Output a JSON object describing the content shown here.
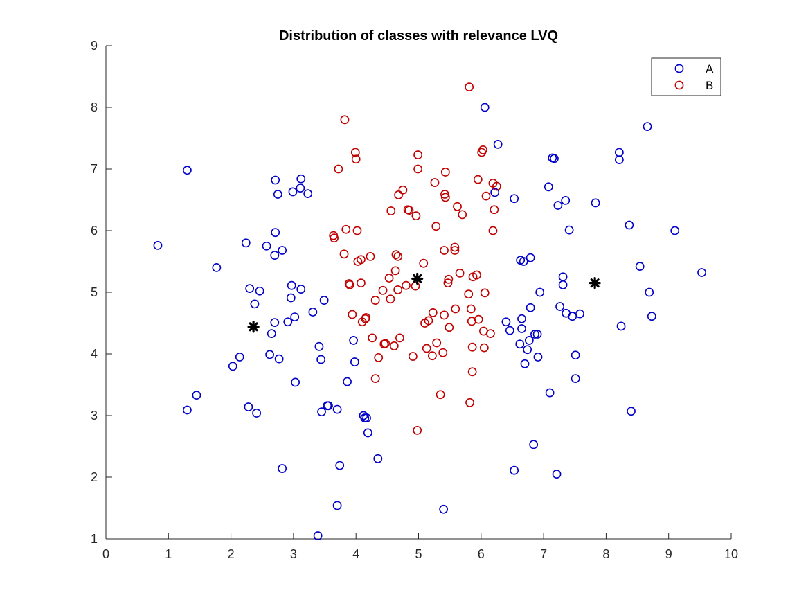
{
  "chart_data": {
    "type": "scatter",
    "title": "Distribution of classes with relevance LVQ",
    "xlabel": "",
    "ylabel": "",
    "xlim": [
      0,
      10
    ],
    "ylim": [
      1,
      9
    ],
    "xticks": [
      "0",
      "1",
      "2",
      "3",
      "4",
      "5",
      "6",
      "7",
      "8",
      "9",
      "10"
    ],
    "yticks": [
      "1",
      "2",
      "3",
      "4",
      "5",
      "6",
      "7",
      "8",
      "9"
    ],
    "grid": false,
    "legend_position": "top-right",
    "series": [
      {
        "name": "A",
        "color": "#0000c8",
        "marker": "circle-open",
        "points": [
          [
            0.83,
            5.76
          ],
          [
            1.3,
            6.98
          ],
          [
            1.3,
            3.09
          ],
          [
            1.45,
            3.33
          ],
          [
            1.77,
            5.4
          ],
          [
            2.03,
            3.8
          ],
          [
            2.14,
            3.95
          ],
          [
            2.24,
            5.8
          ],
          [
            2.28,
            3.14
          ],
          [
            2.3,
            5.06
          ],
          [
            2.38,
            4.81
          ],
          [
            2.41,
            3.04
          ],
          [
            2.46,
            5.02
          ],
          [
            2.57,
            5.75
          ],
          [
            2.62,
            3.99
          ],
          [
            2.65,
            4.33
          ],
          [
            2.7,
            4.51
          ],
          [
            2.7,
            5.6
          ],
          [
            2.71,
            5.97
          ],
          [
            2.71,
            6.82
          ],
          [
            2.75,
            6.59
          ],
          [
            2.77,
            3.92
          ],
          [
            2.82,
            5.68
          ],
          [
            2.82,
            2.14
          ],
          [
            2.91,
            4.52
          ],
          [
            2.96,
            4.91
          ],
          [
            2.97,
            5.11
          ],
          [
            2.99,
            6.63
          ],
          [
            3.02,
            4.6
          ],
          [
            3.03,
            3.54
          ],
          [
            3.11,
            6.69
          ],
          [
            3.12,
            6.84
          ],
          [
            3.12,
            5.05
          ],
          [
            3.23,
            6.6
          ],
          [
            3.31,
            4.68
          ],
          [
            3.39,
            1.05
          ],
          [
            3.41,
            4.12
          ],
          [
            3.44,
            3.91
          ],
          [
            3.45,
            3.06
          ],
          [
            3.49,
            4.87
          ],
          [
            3.54,
            3.16
          ],
          [
            3.56,
            3.16
          ],
          [
            3.7,
            3.1
          ],
          [
            3.7,
            1.54
          ],
          [
            3.74,
            2.19
          ],
          [
            3.86,
            3.55
          ],
          [
            3.96,
            4.22
          ],
          [
            3.98,
            3.87
          ],
          [
            4.12,
            3.0
          ],
          [
            4.14,
            2.96
          ],
          [
            4.17,
            2.96
          ],
          [
            4.19,
            2.72
          ],
          [
            4.35,
            2.3
          ],
          [
            5.4,
            1.48
          ],
          [
            6.06,
            8.0
          ],
          [
            6.22,
            6.62
          ],
          [
            6.27,
            7.4
          ],
          [
            6.4,
            4.52
          ],
          [
            6.46,
            4.38
          ],
          [
            6.53,
            6.52
          ],
          [
            6.53,
            2.11
          ],
          [
            6.62,
            4.16
          ],
          [
            6.63,
            5.52
          ],
          [
            6.65,
            4.57
          ],
          [
            6.65,
            4.41
          ],
          [
            6.68,
            5.5
          ],
          [
            6.7,
            3.84
          ],
          [
            6.74,
            4.07
          ],
          [
            6.77,
            4.22
          ],
          [
            6.79,
            4.75
          ],
          [
            6.79,
            5.56
          ],
          [
            6.84,
            2.53
          ],
          [
            6.86,
            4.32
          ],
          [
            6.9,
            4.32
          ],
          [
            6.91,
            3.95
          ],
          [
            6.94,
            5.0
          ],
          [
            7.08,
            6.71
          ],
          [
            7.1,
            3.37
          ],
          [
            7.14,
            7.18
          ],
          [
            7.17,
            7.17
          ],
          [
            7.21,
            2.05
          ],
          [
            7.23,
            6.41
          ],
          [
            7.26,
            4.77
          ],
          [
            7.31,
            5.25
          ],
          [
            7.31,
            5.12
          ],
          [
            7.35,
            6.49
          ],
          [
            7.36,
            4.66
          ],
          [
            7.41,
            6.01
          ],
          [
            7.46,
            4.61
          ],
          [
            7.51,
            3.98
          ],
          [
            7.51,
            3.6
          ],
          [
            7.58,
            4.65
          ],
          [
            7.83,
            6.45
          ],
          [
            8.21,
            7.27
          ],
          [
            8.21,
            7.15
          ],
          [
            8.24,
            4.45
          ],
          [
            8.37,
            6.09
          ],
          [
            8.4,
            3.07
          ],
          [
            8.54,
            5.42
          ],
          [
            8.66,
            7.69
          ],
          [
            8.69,
            5.0
          ],
          [
            8.73,
            4.61
          ],
          [
            9.1,
            6.0
          ],
          [
            9.53,
            5.32
          ]
        ]
      },
      {
        "name": "B",
        "color": "#c00000",
        "marker": "circle-open",
        "points": [
          [
            3.64,
            5.92
          ],
          [
            3.65,
            5.88
          ],
          [
            3.72,
            7.0
          ],
          [
            3.81,
            5.62
          ],
          [
            3.82,
            7.8
          ],
          [
            3.84,
            6.02
          ],
          [
            3.89,
            5.14
          ],
          [
            3.9,
            5.12
          ],
          [
            3.94,
            4.64
          ],
          [
            3.99,
            7.27
          ],
          [
            4.0,
            7.16
          ],
          [
            4.02,
            6.0
          ],
          [
            4.03,
            5.5
          ],
          [
            4.08,
            5.53
          ],
          [
            4.08,
            5.15
          ],
          [
            4.1,
            4.52
          ],
          [
            4.15,
            4.57
          ],
          [
            4.16,
            4.59
          ],
          [
            4.23,
            5.58
          ],
          [
            4.26,
            4.26
          ],
          [
            4.31,
            3.6
          ],
          [
            4.31,
            4.87
          ],
          [
            4.36,
            3.94
          ],
          [
            4.43,
            5.03
          ],
          [
            4.45,
            4.16
          ],
          [
            4.47,
            4.17
          ],
          [
            4.53,
            5.23
          ],
          [
            4.55,
            4.89
          ],
          [
            4.56,
            6.32
          ],
          [
            4.61,
            4.13
          ],
          [
            4.63,
            5.35
          ],
          [
            4.64,
            5.61
          ],
          [
            4.67,
            5.58
          ],
          [
            4.67,
            5.04
          ],
          [
            4.68,
            6.58
          ],
          [
            4.7,
            4.26
          ],
          [
            4.75,
            6.66
          ],
          [
            4.8,
            5.11
          ],
          [
            4.83,
            6.34
          ],
          [
            4.85,
            6.33
          ],
          [
            4.91,
            3.96
          ],
          [
            4.95,
            5.1
          ],
          [
            4.96,
            6.24
          ],
          [
            4.98,
            2.76
          ],
          [
            4.99,
            7.23
          ],
          [
            4.99,
            7.0
          ],
          [
            5.08,
            5.47
          ],
          [
            5.1,
            4.5
          ],
          [
            5.13,
            4.09
          ],
          [
            5.16,
            4.54
          ],
          [
            5.22,
            3.97
          ],
          [
            5.23,
            4.67
          ],
          [
            5.26,
            6.78
          ],
          [
            5.28,
            6.07
          ],
          [
            5.29,
            4.18
          ],
          [
            5.35,
            3.34
          ],
          [
            5.39,
            4.02
          ],
          [
            5.41,
            5.68
          ],
          [
            5.41,
            4.63
          ],
          [
            5.42,
            6.59
          ],
          [
            5.43,
            6.54
          ],
          [
            5.43,
            6.95
          ],
          [
            5.47,
            5.15
          ],
          [
            5.48,
            5.21
          ],
          [
            5.49,
            4.43
          ],
          [
            5.58,
            5.73
          ],
          [
            5.58,
            5.68
          ],
          [
            5.59,
            4.73
          ],
          [
            5.62,
            6.39
          ],
          [
            5.66,
            5.31
          ],
          [
            5.7,
            6.26
          ],
          [
            5.8,
            4.97
          ],
          [
            5.81,
            8.33
          ],
          [
            5.82,
            3.21
          ],
          [
            5.84,
            4.73
          ],
          [
            5.85,
            4.53
          ],
          [
            5.86,
            3.71
          ],
          [
            5.86,
            4.11
          ],
          [
            5.87,
            5.25
          ],
          [
            5.93,
            5.28
          ],
          [
            5.95,
            6.83
          ],
          [
            5.96,
            4.56
          ],
          [
            6.01,
            7.27
          ],
          [
            6.03,
            7.31
          ],
          [
            6.04,
            4.37
          ],
          [
            6.05,
            4.1
          ],
          [
            6.06,
            4.99
          ],
          [
            6.08,
            6.56
          ],
          [
            6.15,
            4.33
          ],
          [
            6.19,
            6.77
          ],
          [
            6.19,
            6.0
          ],
          [
            6.21,
            6.34
          ],
          [
            6.25,
            6.72
          ]
        ]
      },
      {
        "name": "",
        "color": "#000000",
        "marker": "asterisk",
        "points": [
          [
            2.36,
            4.44
          ],
          [
            4.98,
            5.22
          ],
          [
            7.82,
            5.15
          ]
        ]
      }
    ]
  }
}
